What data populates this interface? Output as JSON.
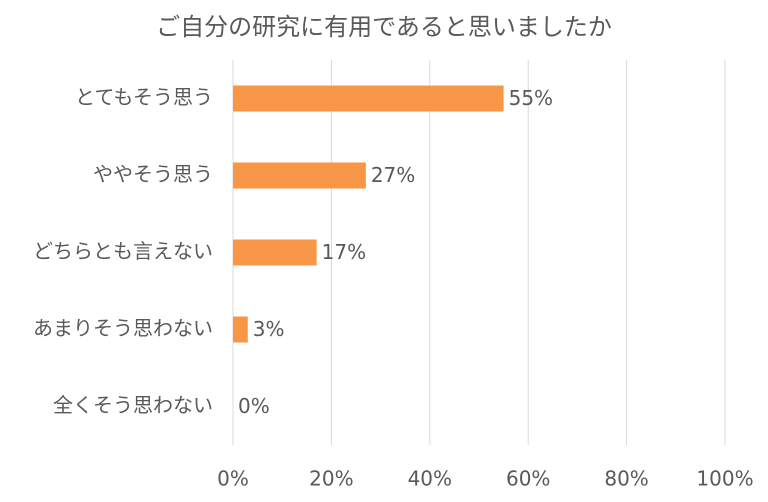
{
  "chart_data": {
    "type": "bar",
    "orientation": "horizontal",
    "title": "ご自分の研究に有用であると思いましたか",
    "categories": [
      "とてもそう思う",
      "ややそう思う",
      "どちらとも言えない",
      "あまりそう思わない",
      "全くそう思わない"
    ],
    "values": [
      55,
      27,
      17,
      3,
      0
    ],
    "value_labels": [
      "55%",
      "27%",
      "17%",
      "3%",
      "0%"
    ],
    "color": "#F79646",
    "xlim": [
      0,
      100
    ],
    "xticks": [
      {
        "value": 0,
        "label": "0%"
      },
      {
        "value": 20,
        "label": "20%"
      },
      {
        "value": 40,
        "label": "40%"
      },
      {
        "value": 60,
        "label": "60%"
      },
      {
        "value": 80,
        "label": "80%"
      },
      {
        "value": 100,
        "label": "100%"
      }
    ],
    "grid": true
  }
}
